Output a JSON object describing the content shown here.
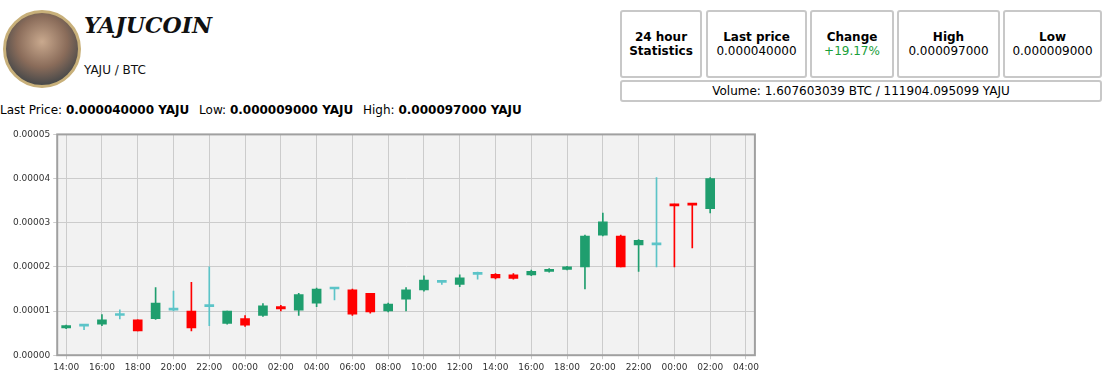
{
  "header": {
    "title": "YAJUCOIN",
    "pair": "YAJU / BTC"
  },
  "stats": [
    {
      "label": "24 hour Statistics"
    },
    {
      "label": "Last price",
      "value": "0.000040000"
    },
    {
      "label": "Change",
      "value": "+19.17%"
    },
    {
      "label": "High",
      "value": "0.000097000"
    },
    {
      "label": "Low",
      "value": "0.000009000"
    }
  ],
  "volume": "Volume: 1.607603039 BTC / 111904.095099 YAJU",
  "summary": [
    {
      "label": "Last Price:",
      "value": "0.000040000 YAJU"
    },
    {
      "label": "Low:",
      "value": "0.000009000 YAJU"
    },
    {
      "label": "High:",
      "value": "0.000097000 YAJU"
    }
  ],
  "chart_data": {
    "type": "candlestick",
    "categories": [
      "14:00",
      null,
      "16:00",
      null,
      "18:00",
      null,
      "20:00",
      null,
      "22:00",
      null,
      "00:00",
      null,
      "02:00",
      null,
      "04:00",
      null,
      "06:00",
      null,
      "08:00",
      null,
      "10:00",
      null,
      "12:00",
      null,
      "14:00",
      null,
      "16:00",
      null,
      "18:00",
      null,
      "20:00",
      null,
      "22:00",
      null,
      "00:00",
      null,
      "02:00",
      null,
      "04:00"
    ],
    "open": [
      6.2e-06,
      6.6e-06,
      7e-06,
      9e-06,
      8e-06,
      8.3e-06,
      1.02e-05,
      1e-05,
      1.1e-05,
      7.2e-06,
      8.3e-06,
      9e-06,
      1.1e-05,
      1.02e-05,
      1.18e-05,
      1.5e-05,
      1.48e-05,
      1.4e-05,
      1e-05,
      1.27e-05,
      1.48e-05,
      1.65e-05,
      1.6e-05,
      1.83e-05,
      1.83e-05,
      1.82e-05,
      1.82e-05,
      1.9e-05,
      1.94e-05,
      2e-05,
      2.72e-05,
      2.7e-05,
      2.5e-05,
      2.5e-05,
      3.42e-05,
      3.43e-05,
      3.32e-05,
      null,
      null
    ],
    "high": [
      6.8e-06,
      7e-06,
      9.2e-06,
      1.03e-05,
      8e-06,
      1.53e-05,
      1.45e-05,
      1.65e-05,
      2e-05,
      1e-05,
      9e-06,
      1.17e-05,
      1.13e-05,
      1.4e-05,
      1.52e-05,
      1.52e-05,
      1.5e-05,
      1.4e-05,
      1.18e-05,
      1.53e-05,
      1.8e-05,
      1.68e-05,
      1.82e-05,
      1.88e-05,
      1.85e-05,
      1.85e-05,
      1.93e-05,
      1.96e-05,
      2.01e-05,
      2.72e-05,
      3.22e-05,
      2.72e-05,
      2.62e-05,
      4.02e-05,
      3.42e-05,
      3.43e-05,
      4.02e-05,
      null,
      null
    ],
    "low": [
      6e-06,
      5.8e-06,
      6.7e-06,
      8.2e-06,
      5.5e-06,
      8.1e-06,
      1e-05,
      5.5e-06,
      6.7e-06,
      7e-06,
      6.5e-06,
      8.8e-06,
      1e-05,
      9e-06,
      1.1e-05,
      1.25e-05,
      9e-06,
      9.5e-06,
      9.8e-06,
      1e-05,
      1.45e-05,
      1.6e-05,
      1.55e-05,
      1.72e-05,
      1.73e-05,
      1.72e-05,
      1.8e-05,
      1.88e-05,
      1.93e-05,
      1.5e-05,
      2.7e-05,
      2e-05,
      1.9e-05,
      2e-05,
      2e-05,
      2.43e-05,
      3.22e-05,
      null,
      null
    ],
    "close": [
      6.7e-06,
      6.6e-06,
      8e-06,
      9e-06,
      5.5e-06,
      1.18e-05,
      1.02e-05,
      6.2e-06,
      1.1e-05,
      1e-05,
      6.8e-06,
      1.12e-05,
      1.05e-05,
      1.37e-05,
      1.5e-05,
      1.5e-05,
      9.3e-06,
      9.8e-06,
      1.16e-05,
      1.48e-05,
      1.7e-05,
      1.65e-05,
      1.75e-05,
      1.83e-05,
      1.75e-05,
      1.74e-05,
      1.9e-05,
      1.93e-05,
      2e-05,
      2.7e-05,
      3.02e-05,
      2e-05,
      2.6e-05,
      2.5e-05,
      3.38e-05,
      3.4e-05,
      4e-05,
      null,
      null
    ],
    "colors": [
      "#1f9e6e",
      "#5cc4c8",
      "#1f9e6e",
      "#5cc4c8",
      "#ff0000",
      "#1f9e6e",
      "#5cc4c8",
      "#ff0000",
      "#5cc4c8",
      "#1f9e6e",
      "#ff0000",
      "#1f9e6e",
      "#ff0000",
      "#1f9e6e",
      "#1f9e6e",
      "#5cc4c8",
      "#ff0000",
      "#ff0000",
      "#1f9e6e",
      "#1f9e6e",
      "#1f9e6e",
      "#5cc4c8",
      "#1f9e6e",
      "#5cc4c8",
      "#ff0000",
      "#ff0000",
      "#1f9e6e",
      "#1f9e6e",
      "#1f9e6e",
      "#1f9e6e",
      "#1f9e6e",
      "#ff0000",
      "#1f9e6e",
      "#5cc4c8",
      "#ff0000",
      "#ff0000",
      "#1f9e6e",
      null,
      null
    ],
    "ylim": [
      0,
      5e-05
    ],
    "yticks": [
      {
        "value": 0,
        "label": "0.00000"
      },
      {
        "value": 1e-05,
        "label": "0.00001"
      },
      {
        "value": 2e-05,
        "label": "0.00002"
      },
      {
        "value": 3e-05,
        "label": "0.00003"
      },
      {
        "value": 4e-05,
        "label": "0.00004"
      },
      {
        "value": 5e-05,
        "label": "0.00005"
      }
    ],
    "grid": true
  }
}
